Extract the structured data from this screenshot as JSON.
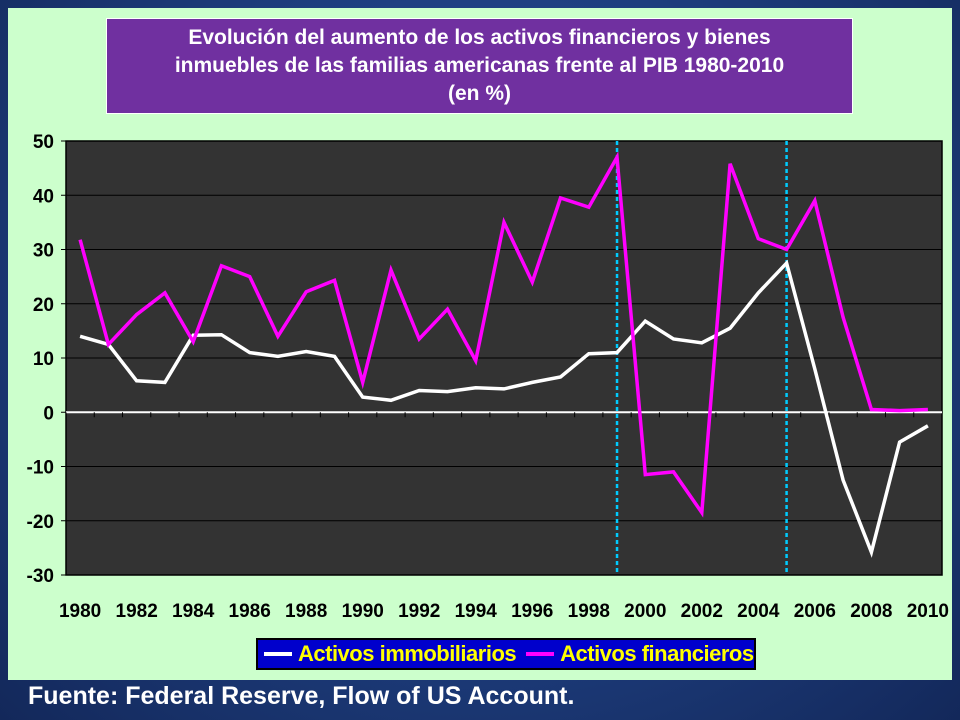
{
  "colors": {
    "panel_bg": "#ccffcc",
    "plot_bg": "#333333",
    "title_bg": "#7030a0",
    "legend_bg": "#0000cc",
    "legend_text": "#ffff00",
    "series_inmobiliarios": "#ffffff",
    "series_financieros": "#ff00ff",
    "vertical_marker": "#00ccff"
  },
  "source_text": "Fuente: Federal Reserve, Flow of US Account.",
  "chart_data": {
    "type": "line",
    "title": "Evolución del aumento de los activos financieros y bienes\ninmuebles de las familias americanas frente al PIB 1980-2010\n(en %)",
    "x": [
      1980,
      1981,
      1982,
      1983,
      1984,
      1985,
      1986,
      1987,
      1988,
      1989,
      1990,
      1991,
      1992,
      1993,
      1994,
      1995,
      1996,
      1997,
      1998,
      1999,
      2000,
      2001,
      2002,
      2003,
      2004,
      2005,
      2006,
      2007,
      2008,
      2009,
      2010
    ],
    "x_tick_labels": [
      "1980",
      "1982",
      "1984",
      "1986",
      "1988",
      "1990",
      "1992",
      "1994",
      "1996",
      "1998",
      "2000",
      "2002",
      "2004",
      "2006",
      "2008",
      "2010"
    ],
    "y_tick_labels": [
      "50",
      "40",
      "30",
      "20",
      "10",
      "0",
      "-10",
      "-20",
      "-30"
    ],
    "ylim": [
      -30,
      50
    ],
    "xlim": [
      1980,
      2010
    ],
    "grid": true,
    "vertical_markers": [
      1999,
      2005
    ],
    "legend_position": "bottom",
    "series": [
      {
        "name": "Activos immobiliarios",
        "color": "#ffffff",
        "values": [
          14,
          12.5,
          5.8,
          5.5,
          14.2,
          14.3,
          11,
          10.3,
          11.2,
          10.3,
          2.8,
          2.2,
          4,
          3.8,
          4.5,
          4.3,
          5.5,
          6.5,
          10.8,
          11,
          16.8,
          13.5,
          12.8,
          15.5,
          22,
          27.5,
          8,
          -12.5,
          -25.8,
          -5.5,
          -2.5
        ]
      },
      {
        "name": "Activos financieros",
        "color": "#ff00ff",
        "values": [
          31.8,
          12.5,
          18,
          22,
          13,
          27,
          25,
          14,
          22.2,
          24.3,
          5.5,
          26.2,
          13.5,
          19,
          9.5,
          35,
          24,
          39.5,
          37.8,
          47,
          -11.5,
          -11,
          -18.5,
          45.8,
          32,
          30,
          39,
          17.5,
          0.5,
          0.3,
          0.5
        ]
      }
    ]
  }
}
